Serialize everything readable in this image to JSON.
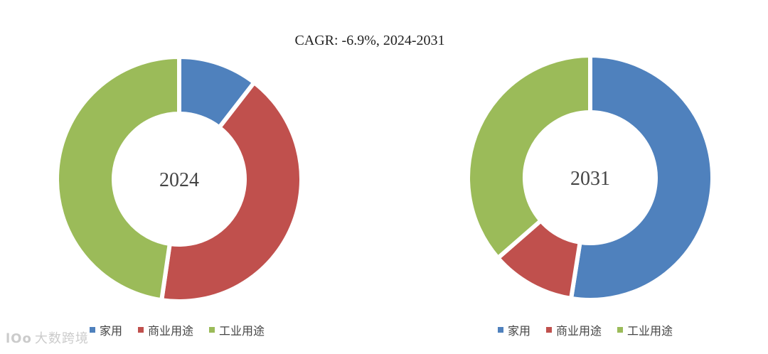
{
  "title": "CAGR:   -6.9%, 2024-2031",
  "colors": {
    "home": "#4f81bd",
    "commercial": "#c0504d",
    "industrial": "#9bbb59"
  },
  "watermark": {
    "logo": "lOo",
    "text": "大数跨境"
  },
  "chart_data": [
    {
      "type": "pie",
      "center_label": "2024",
      "categories": [
        "家用",
        "商业用途",
        "工业用途"
      ],
      "values": [
        10.5,
        41.8,
        47.7
      ],
      "legend": "bottom"
    },
    {
      "type": "pie",
      "center_label": "2031",
      "categories": [
        "家用",
        "商业用途",
        "工业用途"
      ],
      "values": [
        52.5,
        11.1,
        36.4
      ],
      "legend": "bottom"
    }
  ]
}
